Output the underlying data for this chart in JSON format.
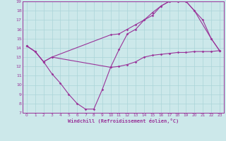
{
  "xlabel": "Windchill (Refroidissement éolien,°C)",
  "background_color": "#cce8ea",
  "grid_color": "#aad4d8",
  "line_color": "#993399",
  "xlim": [
    -0.5,
    23.5
  ],
  "ylim": [
    7,
    19
  ],
  "xticks": [
    0,
    1,
    2,
    3,
    4,
    5,
    6,
    7,
    8,
    9,
    10,
    11,
    12,
    13,
    14,
    15,
    16,
    17,
    18,
    19,
    20,
    21,
    22,
    23
  ],
  "yticks": [
    7,
    8,
    9,
    10,
    11,
    12,
    13,
    14,
    15,
    16,
    17,
    18,
    19
  ],
  "line1_x": [
    0,
    1,
    2,
    3,
    10,
    11,
    12,
    13,
    14,
    15,
    16,
    17,
    18,
    19,
    20,
    21,
    22,
    23
  ],
  "line1_y": [
    14.2,
    13.6,
    12.5,
    13.0,
    11.9,
    12.0,
    12.2,
    12.5,
    13.0,
    13.2,
    13.3,
    13.4,
    13.5,
    13.5,
    13.6,
    13.6,
    13.6,
    13.7
  ],
  "line2_x": [
    0,
    1,
    2,
    3,
    10,
    11,
    12,
    13,
    14,
    15,
    16,
    17,
    18,
    19,
    20,
    21,
    22,
    23
  ],
  "line2_y": [
    14.2,
    13.6,
    12.5,
    13.0,
    15.4,
    15.5,
    16.0,
    16.5,
    17.0,
    17.5,
    18.5,
    19.0,
    19.0,
    19.0,
    18.0,
    17.0,
    15.0,
    13.7
  ],
  "line3_x": [
    0,
    1,
    2,
    3,
    4,
    5,
    6,
    7,
    8,
    9,
    10,
    11,
    12,
    13,
    14,
    15,
    16,
    17,
    18,
    19,
    20,
    22,
    23
  ],
  "line3_y": [
    14.2,
    13.6,
    12.5,
    11.2,
    10.2,
    9.0,
    8.0,
    7.4,
    7.4,
    9.5,
    11.9,
    13.8,
    15.5,
    16.0,
    17.0,
    17.8,
    18.5,
    19.0,
    19.0,
    19.0,
    18.0,
    15.0,
    13.7
  ],
  "ms": 1.8,
  "lw": 0.8
}
